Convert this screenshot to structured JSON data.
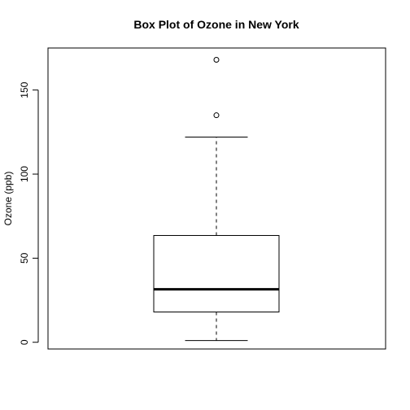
{
  "chart_data": {
    "type": "boxplot",
    "title": "Box Plot of Ozone in New York",
    "ylabel": "Ozone (ppb)",
    "xlabel": "",
    "ylim": [
      -4,
      175
    ],
    "yticks": [
      0,
      50,
      100,
      150
    ],
    "box": {
      "min": 1,
      "q1": 18,
      "median": 31.5,
      "q3": 63.5,
      "max": 122,
      "outliers": [
        135,
        168
      ]
    },
    "grid": false,
    "legend": "none"
  }
}
